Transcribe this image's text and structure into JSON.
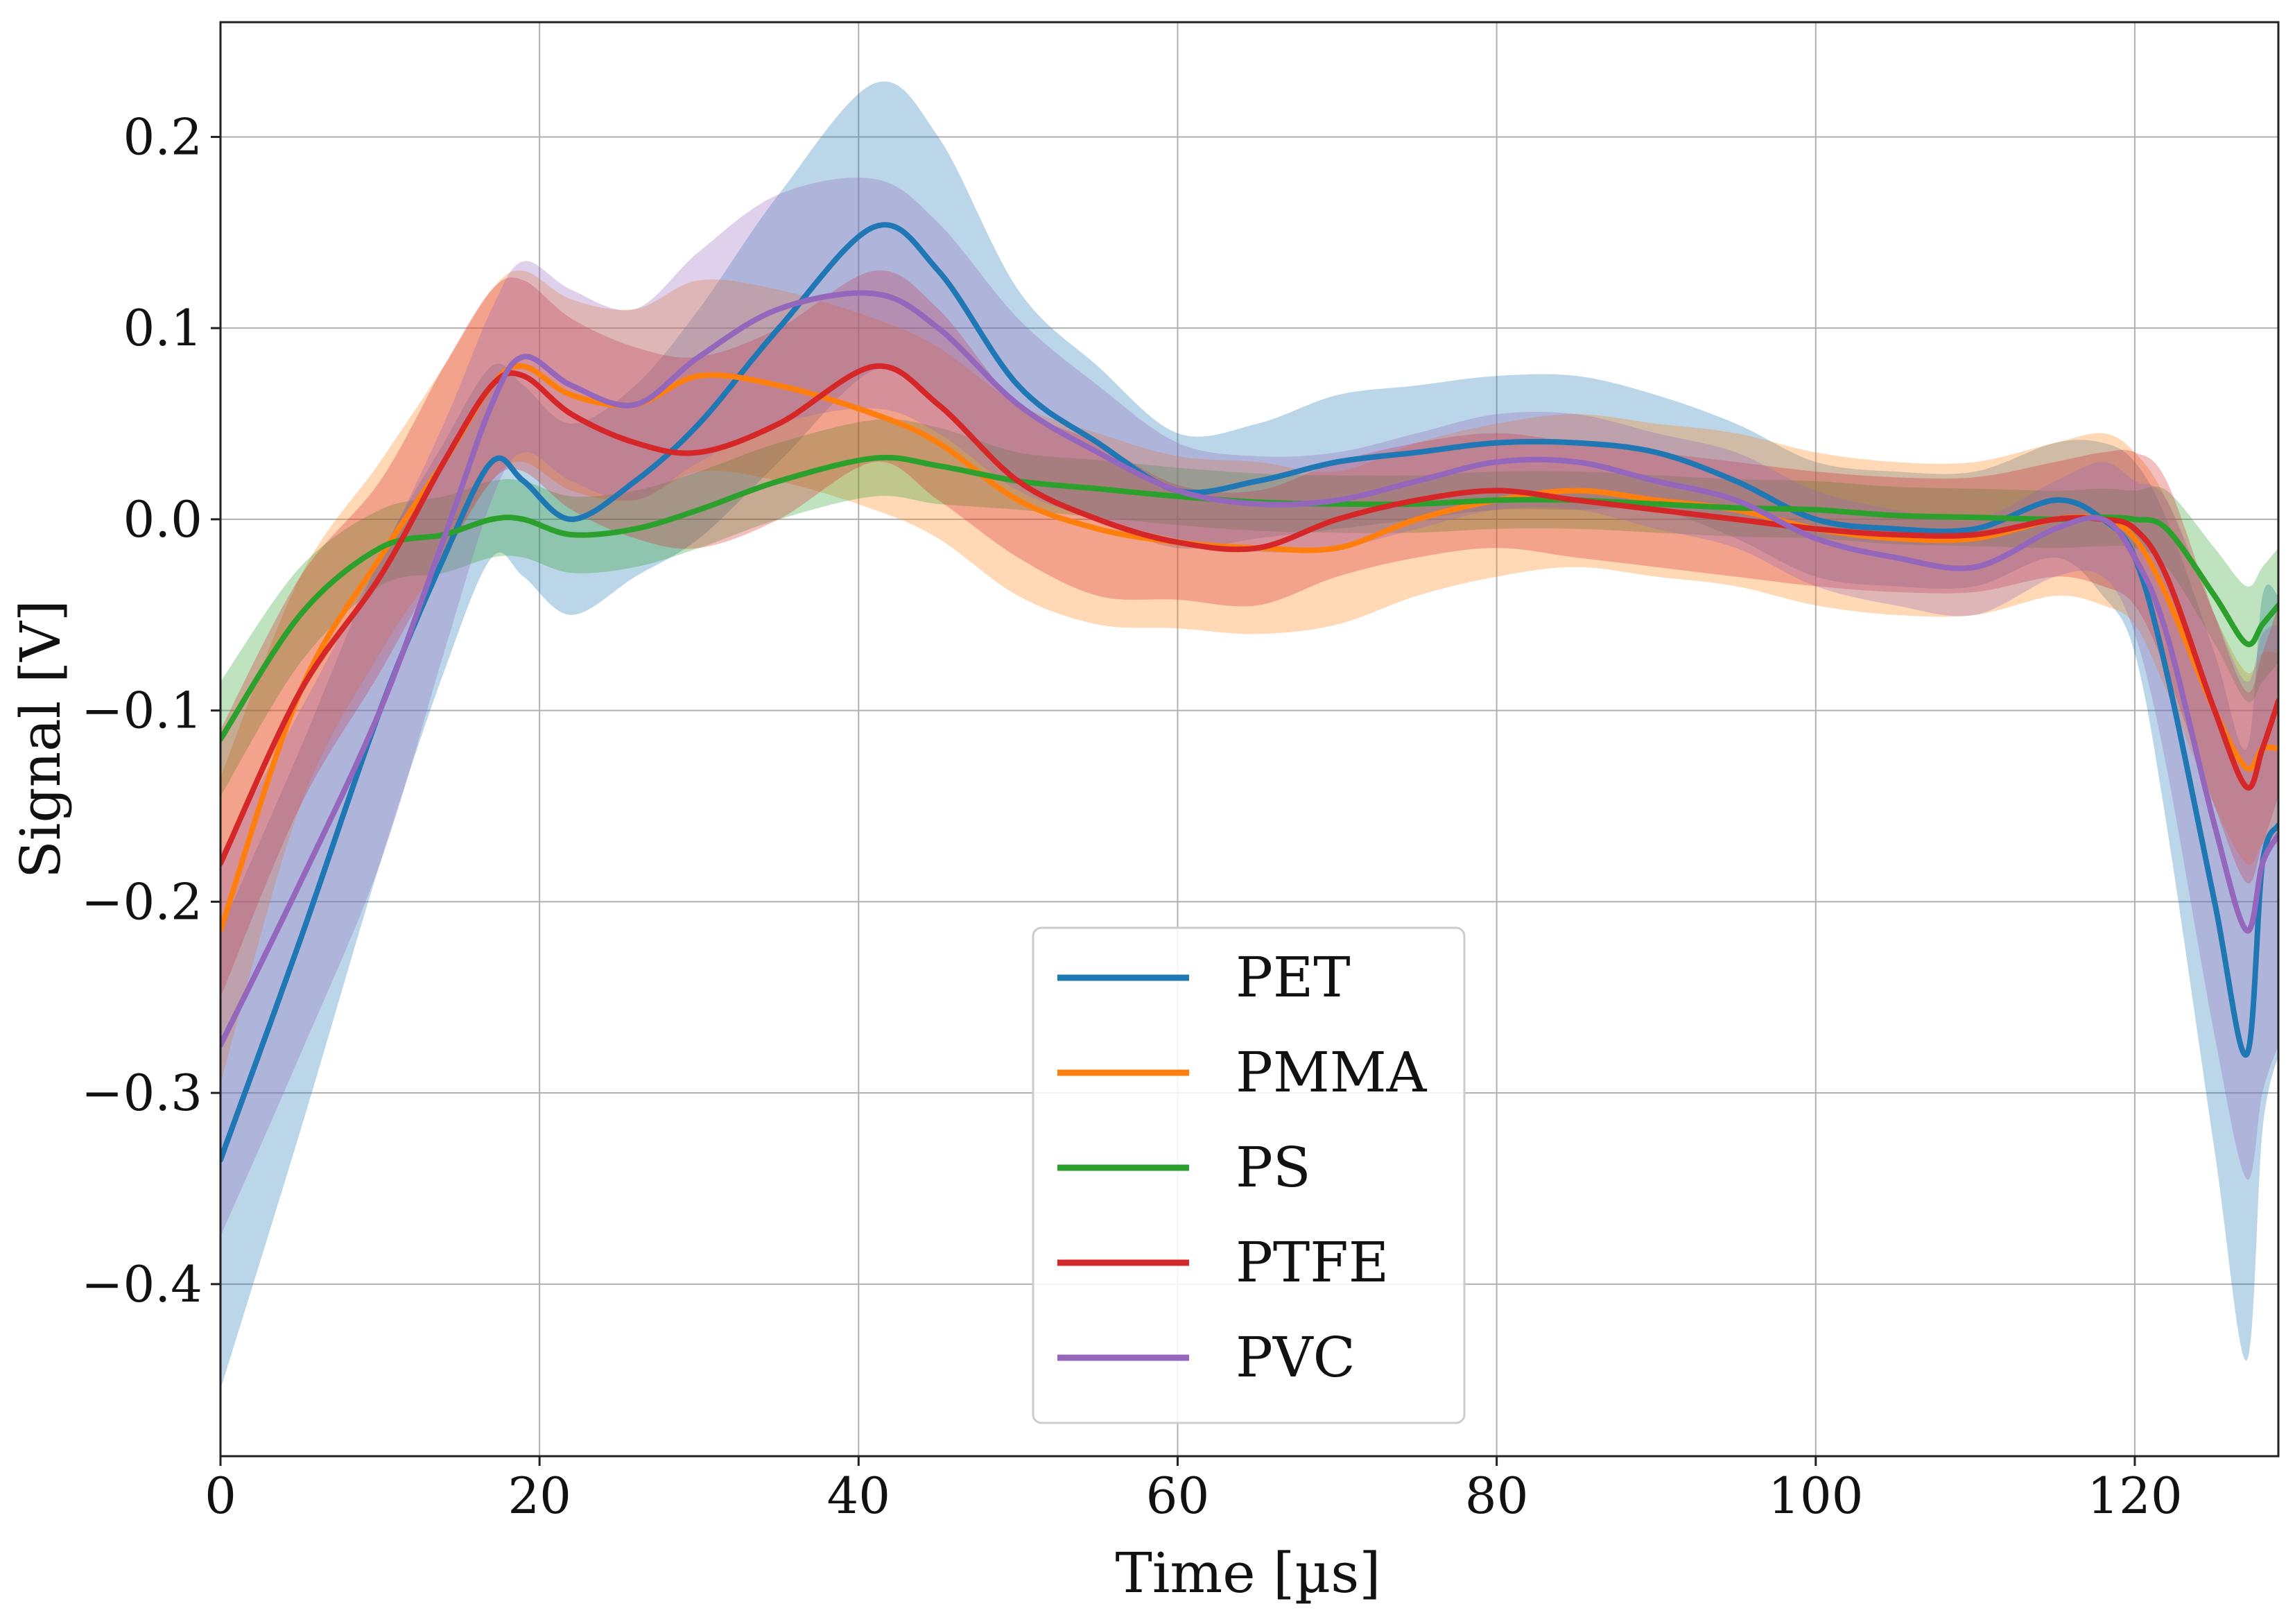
{
  "chart_data": {
    "type": "line",
    "title": "",
    "xlabel": "Time [µs]",
    "ylabel": "Signal [V]",
    "xlim": [
      0,
      129
    ],
    "ylim": [
      -0.49,
      0.26
    ],
    "xticks": [
      0,
      20,
      40,
      60,
      80,
      100,
      120
    ],
    "yticks": [
      0.2,
      0.1,
      0.0,
      -0.1,
      -0.2,
      -0.3,
      -0.4
    ],
    "ytick_labels": [
      "0.2",
      "0.1",
      "0.0",
      "−0.1",
      "−0.2",
      "−0.3",
      "−0.4"
    ],
    "grid": true,
    "legend_position": "bottom-center",
    "x": [
      0,
      5,
      10,
      14,
      17,
      19,
      22,
      26,
      30,
      35,
      41,
      45,
      50,
      55,
      60,
      65,
      70,
      75,
      80,
      85,
      90,
      95,
      100,
      105,
      110,
      115,
      118,
      120,
      122,
      125,
      127,
      128,
      129
    ],
    "series": [
      {
        "name": "PET",
        "color": "#1f77b4",
        "values": [
          -0.335,
          -0.22,
          -0.1,
          -0.02,
          0.03,
          0.02,
          0.0,
          0.02,
          0.05,
          0.1,
          0.153,
          0.13,
          0.07,
          0.04,
          0.015,
          0.02,
          0.03,
          0.035,
          0.04,
          0.04,
          0.035,
          0.02,
          0.0,
          -0.005,
          -0.005,
          0.01,
          0.0,
          -0.02,
          -0.08,
          -0.2,
          -0.28,
          -0.18,
          -0.16
        ],
        "spread": [
          0.12,
          0.1,
          0.08,
          0.06,
          0.05,
          0.05,
          0.05,
          0.05,
          0.06,
          0.07,
          0.075,
          0.07,
          0.05,
          0.04,
          0.03,
          0.03,
          0.035,
          0.035,
          0.035,
          0.035,
          0.03,
          0.03,
          0.03,
          0.03,
          0.03,
          0.03,
          0.04,
          0.05,
          0.08,
          0.13,
          0.16,
          0.14,
          0.12
        ]
      },
      {
        "name": "PMMA",
        "color": "#ff7f0e",
        "values": [
          -0.215,
          -0.09,
          -0.02,
          0.03,
          0.07,
          0.08,
          0.065,
          0.06,
          0.075,
          0.07,
          0.055,
          0.04,
          0.01,
          -0.005,
          -0.012,
          -0.015,
          -0.015,
          0.0,
          0.01,
          0.015,
          0.01,
          0.005,
          -0.005,
          -0.01,
          -0.01,
          0.0,
          0.0,
          -0.01,
          -0.04,
          -0.1,
          -0.13,
          -0.12,
          -0.12
        ],
        "spread": [
          0.08,
          0.06,
          0.05,
          0.05,
          0.05,
          0.05,
          0.05,
          0.05,
          0.05,
          0.05,
          0.05,
          0.05,
          0.05,
          0.05,
          0.045,
          0.045,
          0.04,
          0.04,
          0.04,
          0.04,
          0.04,
          0.04,
          0.04,
          0.04,
          0.04,
          0.04,
          0.045,
          0.045,
          0.05,
          0.05,
          0.05,
          0.05,
          0.05
        ]
      },
      {
        "name": "PS",
        "color": "#2ca02c",
        "values": [
          -0.115,
          -0.05,
          -0.015,
          -0.008,
          0.0,
          0.0,
          -0.008,
          -0.005,
          0.005,
          0.02,
          0.032,
          0.028,
          0.02,
          0.016,
          0.012,
          0.009,
          0.008,
          0.008,
          0.01,
          0.01,
          0.008,
          0.006,
          0.005,
          0.002,
          0.001,
          0.0,
          0.001,
          0.0,
          -0.005,
          -0.04,
          -0.065,
          -0.055,
          -0.045
        ],
        "spread": [
          0.03,
          0.025,
          0.02,
          0.02,
          0.02,
          0.02,
          0.02,
          0.02,
          0.02,
          0.02,
          0.02,
          0.02,
          0.015,
          0.015,
          0.015,
          0.015,
          0.015,
          0.015,
          0.015,
          0.015,
          0.015,
          0.015,
          0.015,
          0.015,
          0.015,
          0.015,
          0.015,
          0.015,
          0.02,
          0.025,
          0.03,
          0.03,
          0.03
        ]
      },
      {
        "name": "PTFE",
        "color": "#d62728",
        "values": [
          -0.18,
          -0.09,
          -0.03,
          0.03,
          0.07,
          0.075,
          0.055,
          0.04,
          0.035,
          0.05,
          0.08,
          0.06,
          0.02,
          0.0,
          -0.012,
          -0.015,
          0.0,
          0.01,
          0.015,
          0.01,
          0.005,
          0.0,
          -0.005,
          -0.008,
          -0.008,
          0.0,
          0.0,
          -0.005,
          -0.03,
          -0.1,
          -0.14,
          -0.12,
          -0.095
        ],
        "spread": [
          0.07,
          0.06,
          0.05,
          0.05,
          0.05,
          0.05,
          0.05,
          0.05,
          0.05,
          0.05,
          0.05,
          0.05,
          0.04,
          0.04,
          0.03,
          0.03,
          0.03,
          0.03,
          0.03,
          0.03,
          0.03,
          0.03,
          0.03,
          0.03,
          0.03,
          0.03,
          0.035,
          0.04,
          0.05,
          0.05,
          0.05,
          0.05,
          0.05
        ]
      },
      {
        "name": "PVC",
        "color": "#9467bd",
        "values": [
          -0.275,
          -0.19,
          -0.1,
          -0.01,
          0.06,
          0.085,
          0.07,
          0.06,
          0.085,
          0.11,
          0.118,
          0.1,
          0.06,
          0.035,
          0.015,
          0.008,
          0.01,
          0.02,
          0.03,
          0.03,
          0.02,
          0.01,
          -0.01,
          -0.02,
          -0.025,
          -0.005,
          0.0,
          -0.02,
          -0.06,
          -0.16,
          -0.215,
          -0.18,
          -0.165
        ],
        "spread": [
          0.1,
          0.09,
          0.08,
          0.06,
          0.05,
          0.05,
          0.05,
          0.05,
          0.055,
          0.06,
          0.06,
          0.055,
          0.045,
          0.035,
          0.025,
          0.025,
          0.025,
          0.025,
          0.025,
          0.025,
          0.025,
          0.025,
          0.025,
          0.025,
          0.025,
          0.025,
          0.03,
          0.04,
          0.07,
          0.11,
          0.13,
          0.12,
          0.11
        ]
      }
    ]
  }
}
